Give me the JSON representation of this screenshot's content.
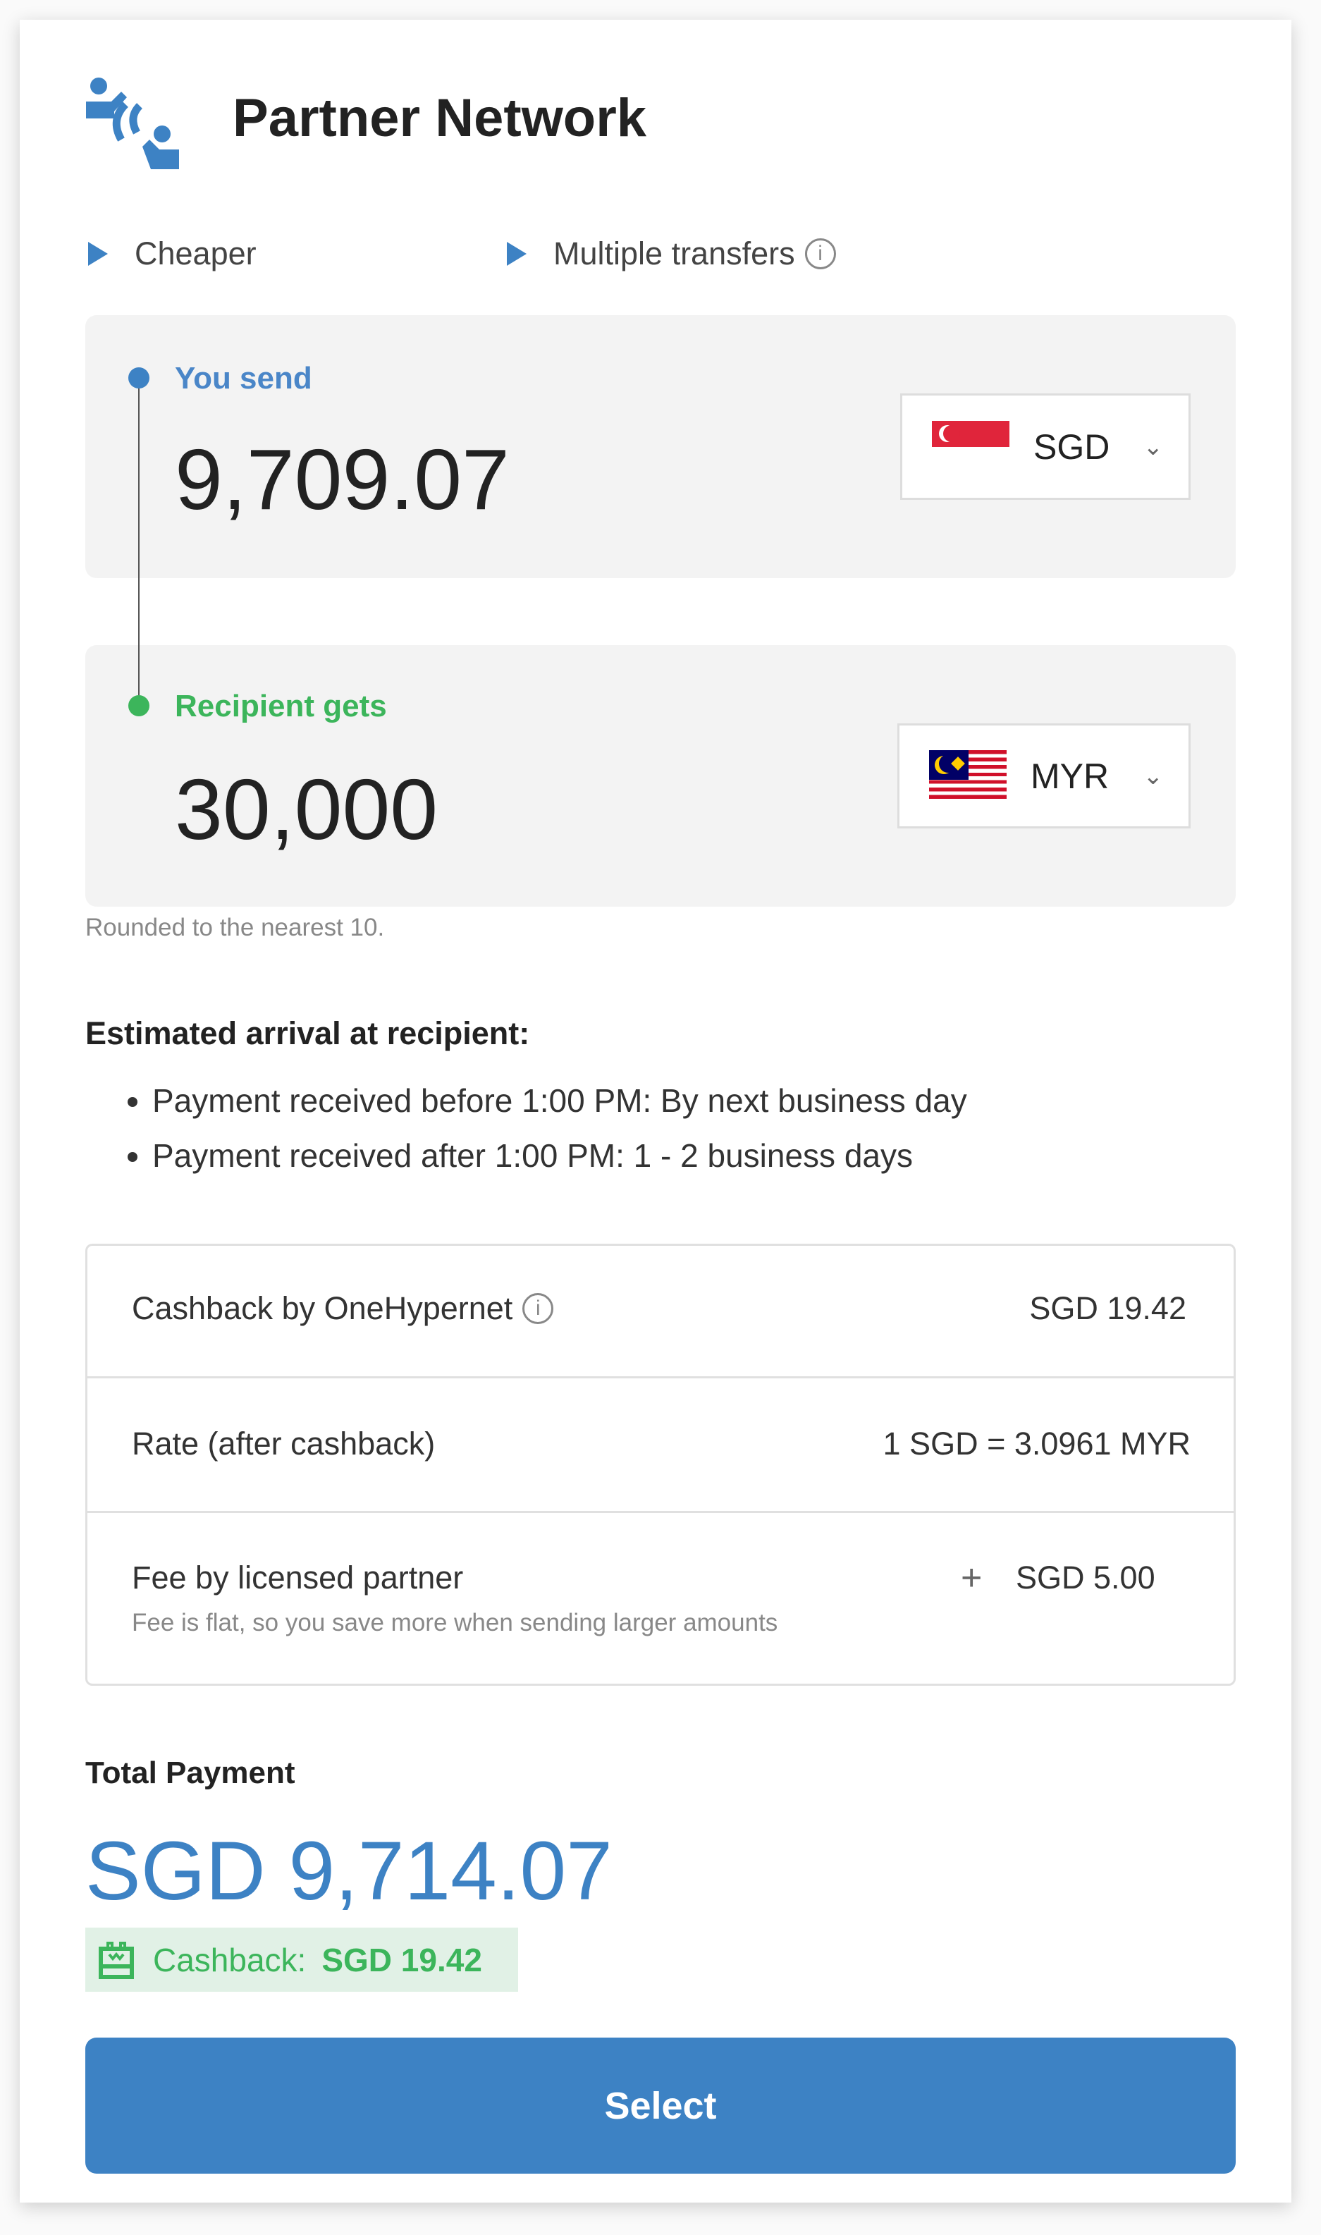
{
  "header": {
    "title": "Partner Network",
    "icon": "partner-network-icon"
  },
  "features": [
    {
      "label": "Cheaper"
    },
    {
      "label": "Multiple transfers"
    }
  ],
  "send": {
    "label": "You send",
    "amount": "9,709.07",
    "currency": "SGD"
  },
  "receive": {
    "label": "Recipient gets",
    "amount": "30,000",
    "currency": "MYR"
  },
  "rounding_note": "Rounded to the nearest 10.",
  "arrival": {
    "title": "Estimated arrival at recipient:",
    "items": [
      "Payment received before 1:00 PM: By next business day",
      "Payment received after 1:00 PM: 1 - 2 business days"
    ]
  },
  "details": {
    "cashback": {
      "label": "Cashback by OneHypernet",
      "value": "SGD 19.42"
    },
    "rate": {
      "label": "Rate (after cashback)",
      "value": "1 SGD = 3.0961 MYR"
    },
    "fee": {
      "label": "Fee by licensed partner",
      "note": "Fee is flat, so you save more when sending larger amounts",
      "sign": "+",
      "value": "SGD 5.00"
    }
  },
  "total": {
    "label": "Total Payment",
    "amount": "SGD 9,714.07",
    "cashback_label": "Cashback:",
    "cashback_value": "SGD 19.42"
  },
  "select_label": "Select",
  "colors": {
    "accent": "#3d82c4",
    "green": "#3cb55b",
    "box": "#f3f3f3"
  }
}
